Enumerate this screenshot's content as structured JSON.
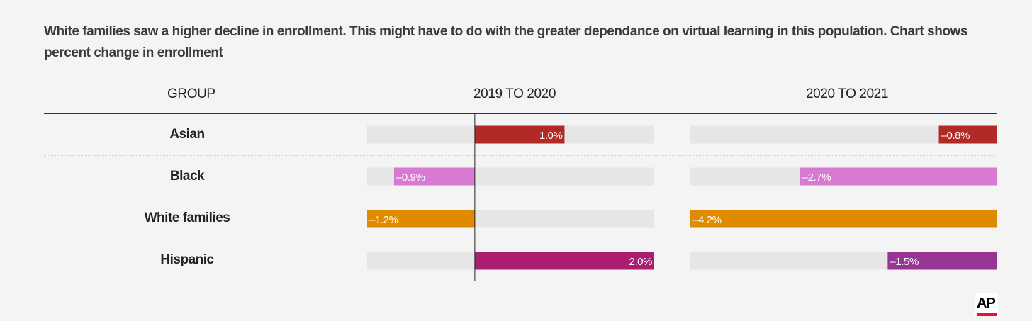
{
  "title": "White families saw a higher decline in enrollment. This might have to do with the greater dependance on virtual learning in this population. Chart shows percent change in enrollment",
  "headers": {
    "group": "GROUP",
    "col1": "2019 TO 2020",
    "col2": "2020 TO 2021"
  },
  "logo_text": "AP",
  "colors": {
    "track": "#e6e6e6",
    "axis": "#222222",
    "logo_accent": "#e8113a"
  },
  "chart_data": {
    "type": "bar",
    "orientation": "horizontal",
    "categories": [
      "Asian",
      "Black",
      "White families",
      "Hispanic"
    ],
    "series": [
      {
        "name": "2019 TO 2020",
        "values": [
          1.0,
          -0.9,
          -1.2,
          2.0
        ],
        "labels": [
          "1.0%",
          "–0.9%",
          "–1.2%",
          "2.0%"
        ],
        "xlim": [
          -1.2,
          2.0
        ]
      },
      {
        "name": "2020 TO 2021",
        "values": [
          -0.8,
          -2.7,
          -4.2,
          -1.5
        ],
        "labels": [
          "–0.8%",
          "–2.7%",
          "–4.2%",
          "–1.5%"
        ],
        "xlim": [
          -4.2,
          0
        ]
      }
    ],
    "bar_colors": [
      "#b22a25",
      "#d879d2",
      "#e08a00",
      "#aa1e70"
    ],
    "bar_colors_col2": [
      "#b22a25",
      "#d879d2",
      "#e08a00",
      "#973593"
    ],
    "grid": false
  }
}
